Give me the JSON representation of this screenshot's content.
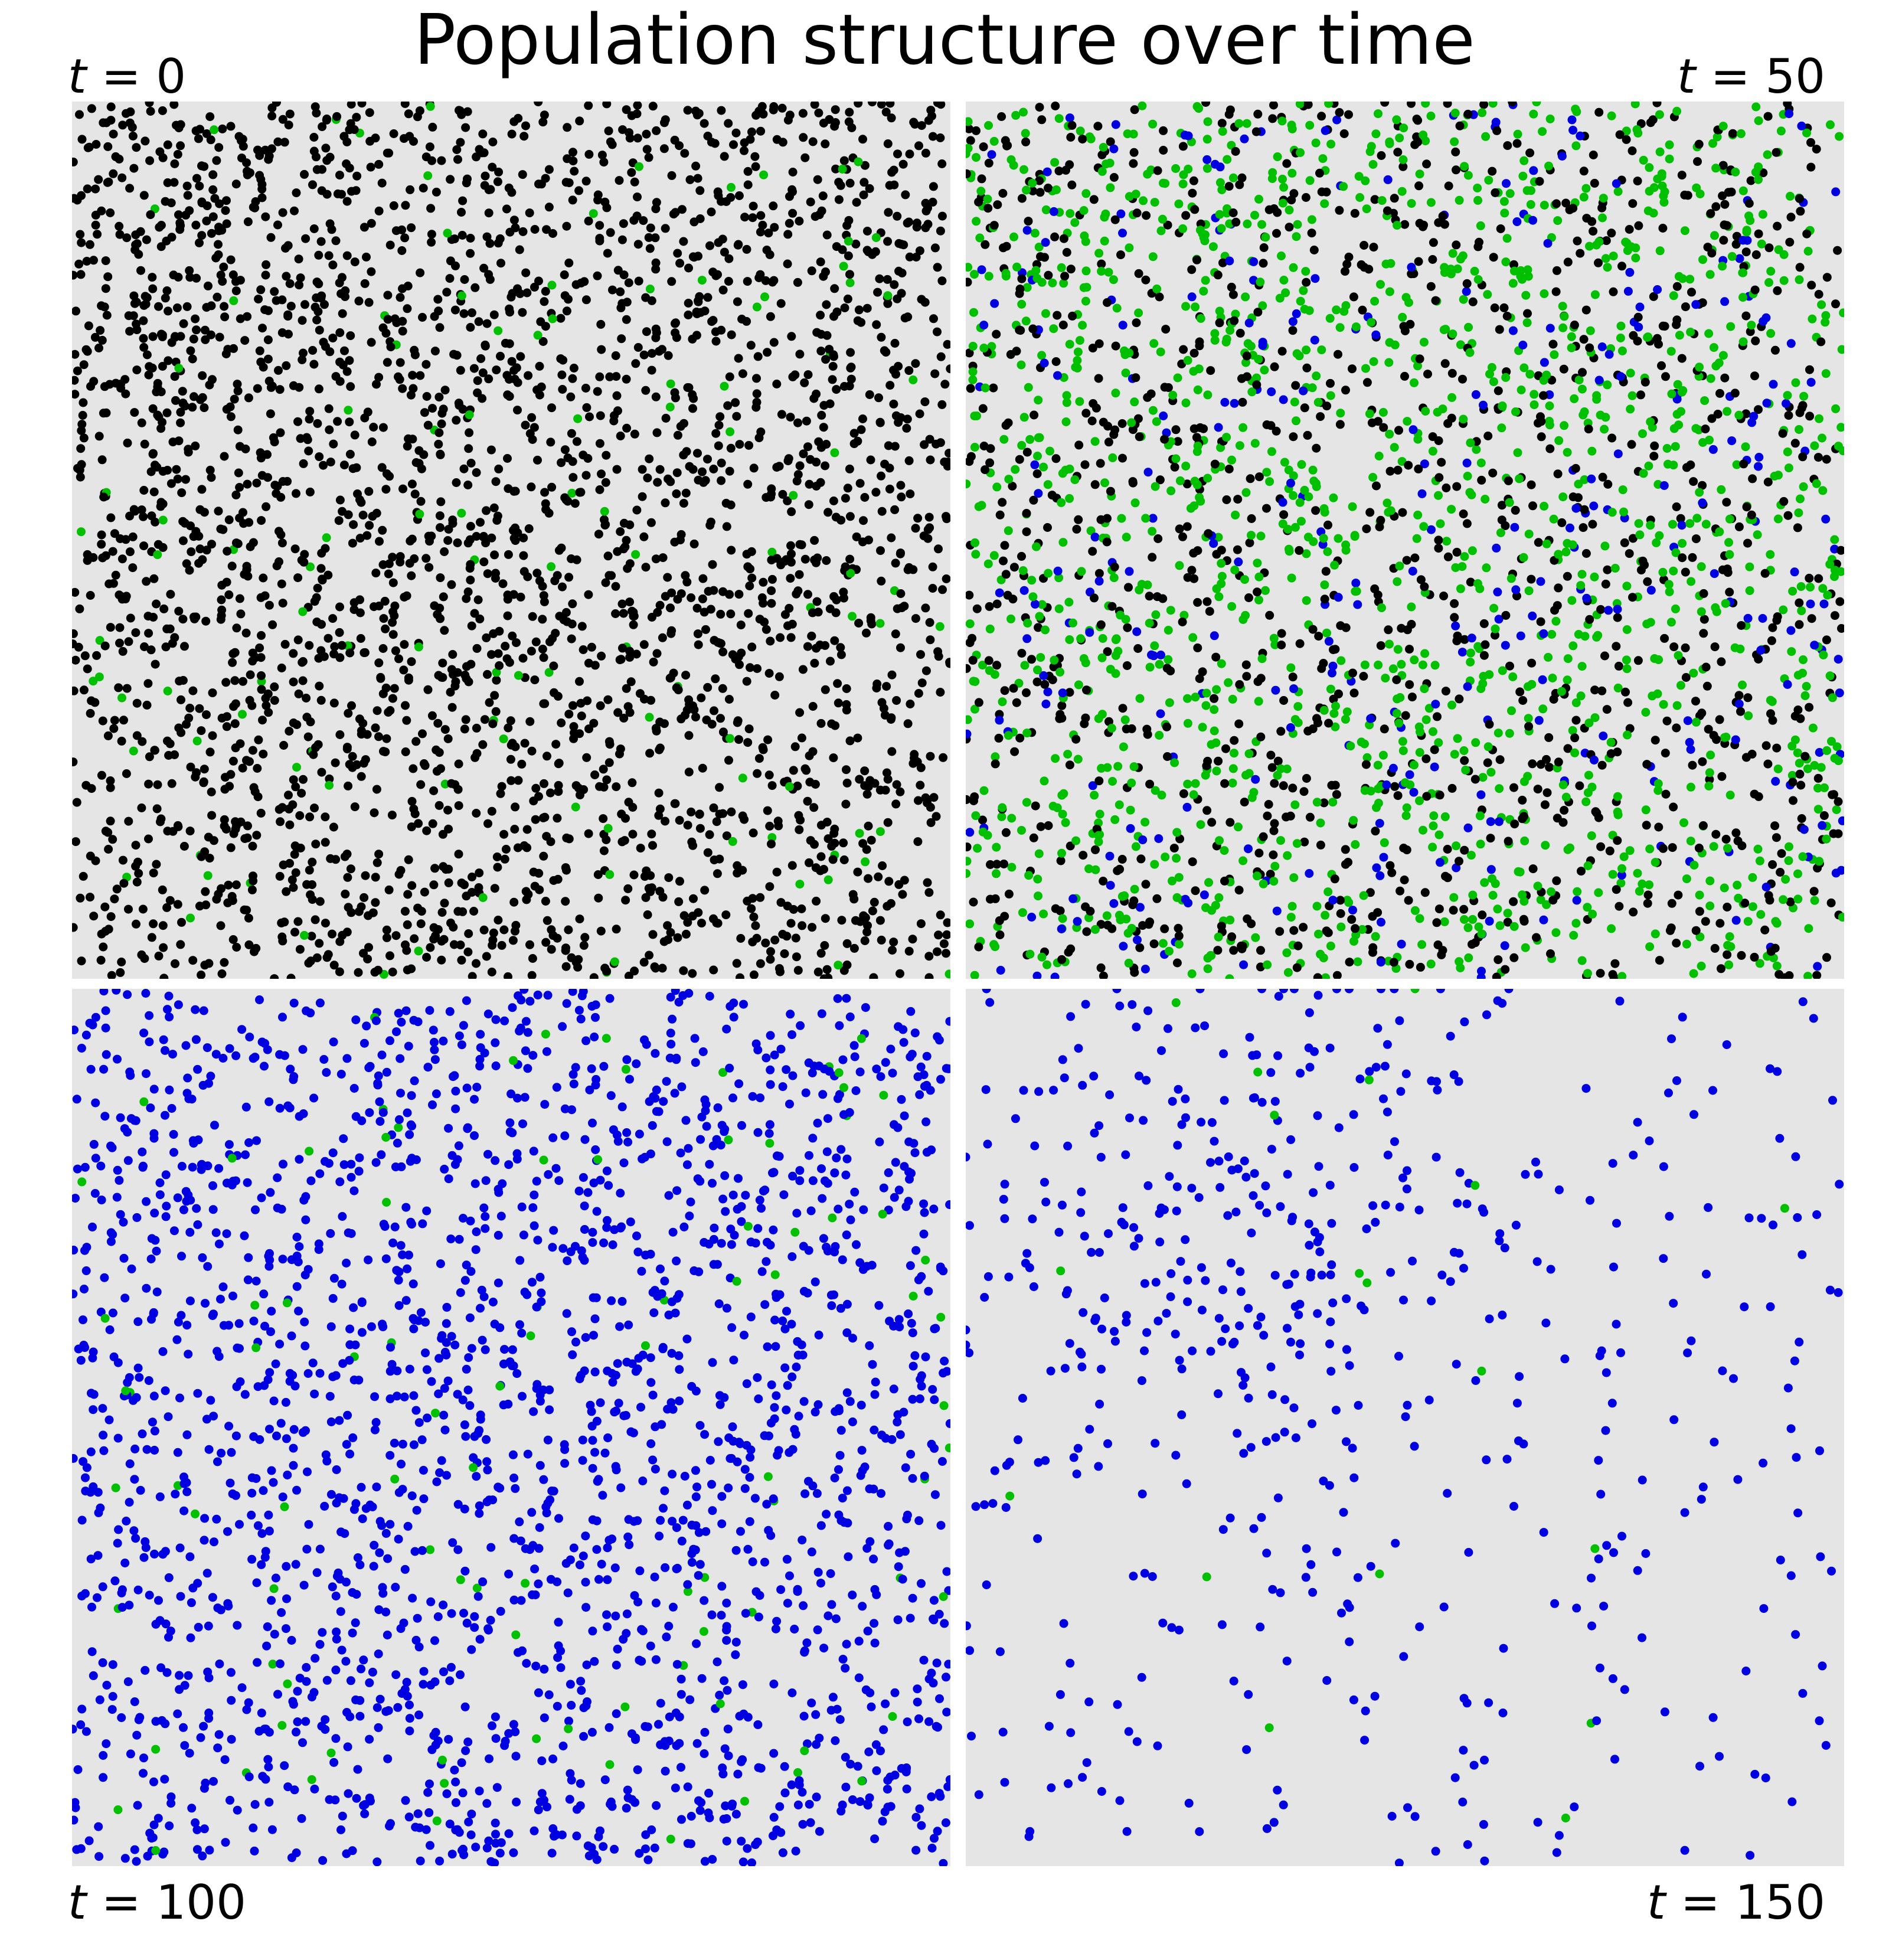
{
  "title": "Population structure over time",
  "colors": {
    "background": "#e5e5e5",
    "black": "#000000",
    "green": "#00c000",
    "blue": "#0000e0"
  },
  "chart_data": [
    {
      "type": "scatter",
      "label": {
        "var": "t",
        "eq": " = ",
        "value": "0"
      },
      "t": 0,
      "xlim": [
        0,
        1
      ],
      "ylim": [
        0,
        1
      ],
      "grid": false,
      "legend": "none",
      "counts": {
        "black": 2950,
        "green": 115,
        "blue": 0
      }
    },
    {
      "type": "scatter",
      "label": {
        "var": "t",
        "eq": " = ",
        "value": "50"
      },
      "t": 50,
      "xlim": [
        0,
        1
      ],
      "ylim": [
        0,
        1
      ],
      "grid": false,
      "legend": "none",
      "counts": {
        "black": 1300,
        "green": 1500,
        "blue": 330
      }
    },
    {
      "type": "scatter",
      "label": {
        "var": "t",
        "eq": " = ",
        "value": "100"
      },
      "t": 100,
      "xlim": [
        0,
        1
      ],
      "ylim": [
        0,
        1
      ],
      "grid": false,
      "legend": "none",
      "counts": {
        "black": 0,
        "green": 95,
        "blue": 2150
      }
    },
    {
      "type": "scatter",
      "label": {
        "var": "t",
        "eq": " = ",
        "value": "150"
      },
      "t": 150,
      "xlim": [
        0,
        1
      ],
      "ylim": [
        0,
        1
      ],
      "grid": false,
      "legend": "none",
      "counts": {
        "black": 0,
        "green": 18,
        "blue": 560
      }
    }
  ]
}
